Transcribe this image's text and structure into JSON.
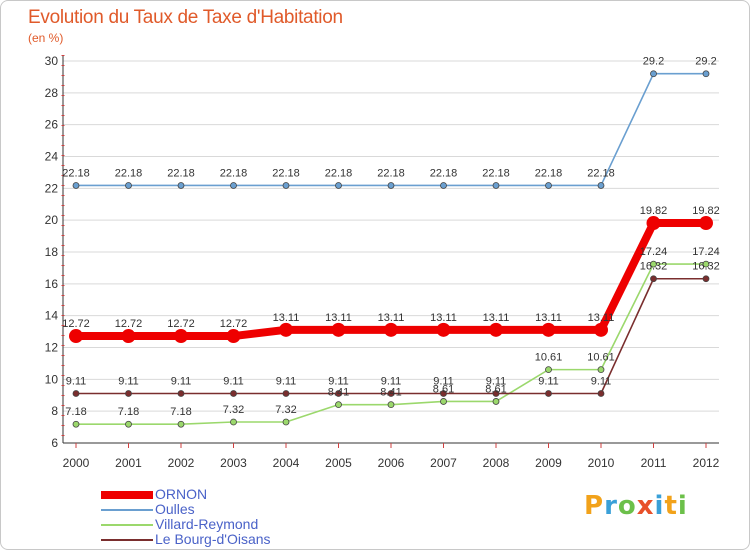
{
  "header": {
    "title": "Evolution du Taux de Taxe d'Habitation",
    "unit": "(en %)"
  },
  "chart_data": {
    "type": "line",
    "title": "Evolution du Taux de Taxe d'Habitation",
    "ylabel": "(en %)",
    "xlabel": "",
    "ylim": [
      6,
      30
    ],
    "yticks": [
      6,
      8,
      10,
      12,
      14,
      16,
      18,
      20,
      22,
      24,
      26,
      28,
      30
    ],
    "x": [
      "2000",
      "2001",
      "2002",
      "2003",
      "2004",
      "2005",
      "2006",
      "2007",
      "2008",
      "2009",
      "2010",
      "2011",
      "2012"
    ],
    "series": [
      {
        "name": "Oulles",
        "color": "#6a9fd0",
        "values": [
          22.18,
          22.18,
          22.18,
          22.18,
          22.18,
          22.18,
          22.18,
          22.18,
          22.18,
          22.18,
          22.18,
          29.2,
          29.2
        ],
        "labels": [
          "22.18",
          "22.18",
          "22.18",
          "22.18",
          "22.18",
          "22.18",
          "22.18",
          "22.18",
          "22.18",
          "22.18",
          "22.18",
          "29.2",
          "29.2"
        ]
      },
      {
        "name": "Villard-Reymond",
        "color": "#9bd86c",
        "values": [
          7.18,
          7.18,
          7.18,
          7.32,
          7.32,
          8.41,
          8.41,
          8.61,
          8.61,
          10.61,
          10.61,
          17.24,
          17.24
        ],
        "labels": [
          "7.18",
          "7.18",
          "7.18",
          "7.32",
          "7.32",
          "8.41",
          "8.41",
          "8.61",
          "8.61",
          "10.61",
          "10.61",
          "17.24",
          "17.24"
        ]
      },
      {
        "name": "Le Bourg-d'Oisans",
        "color": "#7a2e2e",
        "values": [
          9.11,
          9.11,
          9.11,
          9.11,
          9.11,
          9.11,
          9.11,
          9.11,
          9.11,
          9.11,
          9.11,
          16.32,
          16.32
        ],
        "labels": [
          "9.11",
          "9.11",
          "9.11",
          "9.11",
          "9.11",
          "9.11",
          "9.11",
          "9.11",
          "9.11",
          "9.11",
          "9.11",
          "16.32",
          "16.32"
        ]
      },
      {
        "name": "ORNON",
        "color": "#ee0000",
        "values": [
          12.72,
          12.72,
          12.72,
          12.72,
          13.11,
          13.11,
          13.11,
          13.11,
          13.11,
          13.11,
          13.11,
          19.82,
          19.82
        ],
        "labels": [
          "12.72",
          "12.72",
          "12.72",
          "12.72",
          "13.11",
          "13.11",
          "13.11",
          "13.11",
          "13.11",
          "13.11",
          "13.11",
          "19.82",
          "19.82"
        ]
      }
    ],
    "legend": [
      "ORNON",
      "Oulles",
      "Villard-Reymond",
      "Le Bourg-d'Oisans"
    ],
    "legend_position": "bottom-left"
  },
  "logo": {
    "letters": [
      "P",
      "r",
      "o",
      "x",
      "i",
      "t",
      "i"
    ],
    "colors": [
      "#f2a21a",
      "#3aa0d8",
      "#6cc04a",
      "#e8502a",
      "#3aa0d8",
      "#f2a21a",
      "#6cc04a"
    ]
  }
}
